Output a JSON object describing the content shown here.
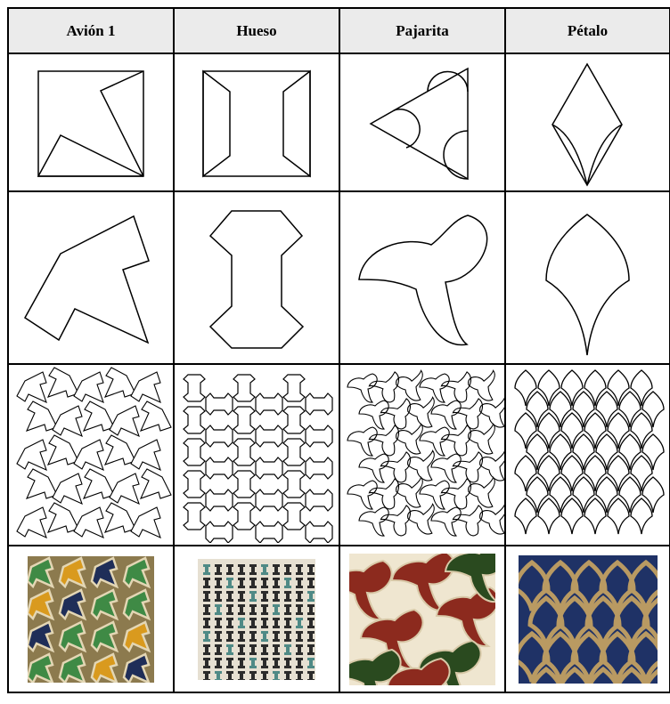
{
  "table": {
    "columns": [
      {
        "header": "Avión 1"
      },
      {
        "header": "Hueso"
      },
      {
        "header": "Pajarita"
      },
      {
        "header": "Pétalo"
      }
    ]
  },
  "rows": [
    "construction-from-polygon",
    "tile-outline",
    "tessellation",
    "alhambra-photo"
  ],
  "colors": {
    "line": "#000000",
    "header_bg": "#ebebeb",
    "avion_green": "#3f8a45",
    "avion_yellow": "#d99a1e",
    "avion_navy": "#1f2e58",
    "avion_cream": "#e3d6b4",
    "hueso_black": "#2b2b2b",
    "hueso_teal": "#4f8a86",
    "hueso_cream": "#e6e0d2",
    "pajarita_red": "#8c2a1e",
    "pajarita_green": "#2a4a1f",
    "pajarita_cream": "#efe6d0",
    "petalo_blue": "#1f3266",
    "petalo_gold": "#b99a62"
  }
}
